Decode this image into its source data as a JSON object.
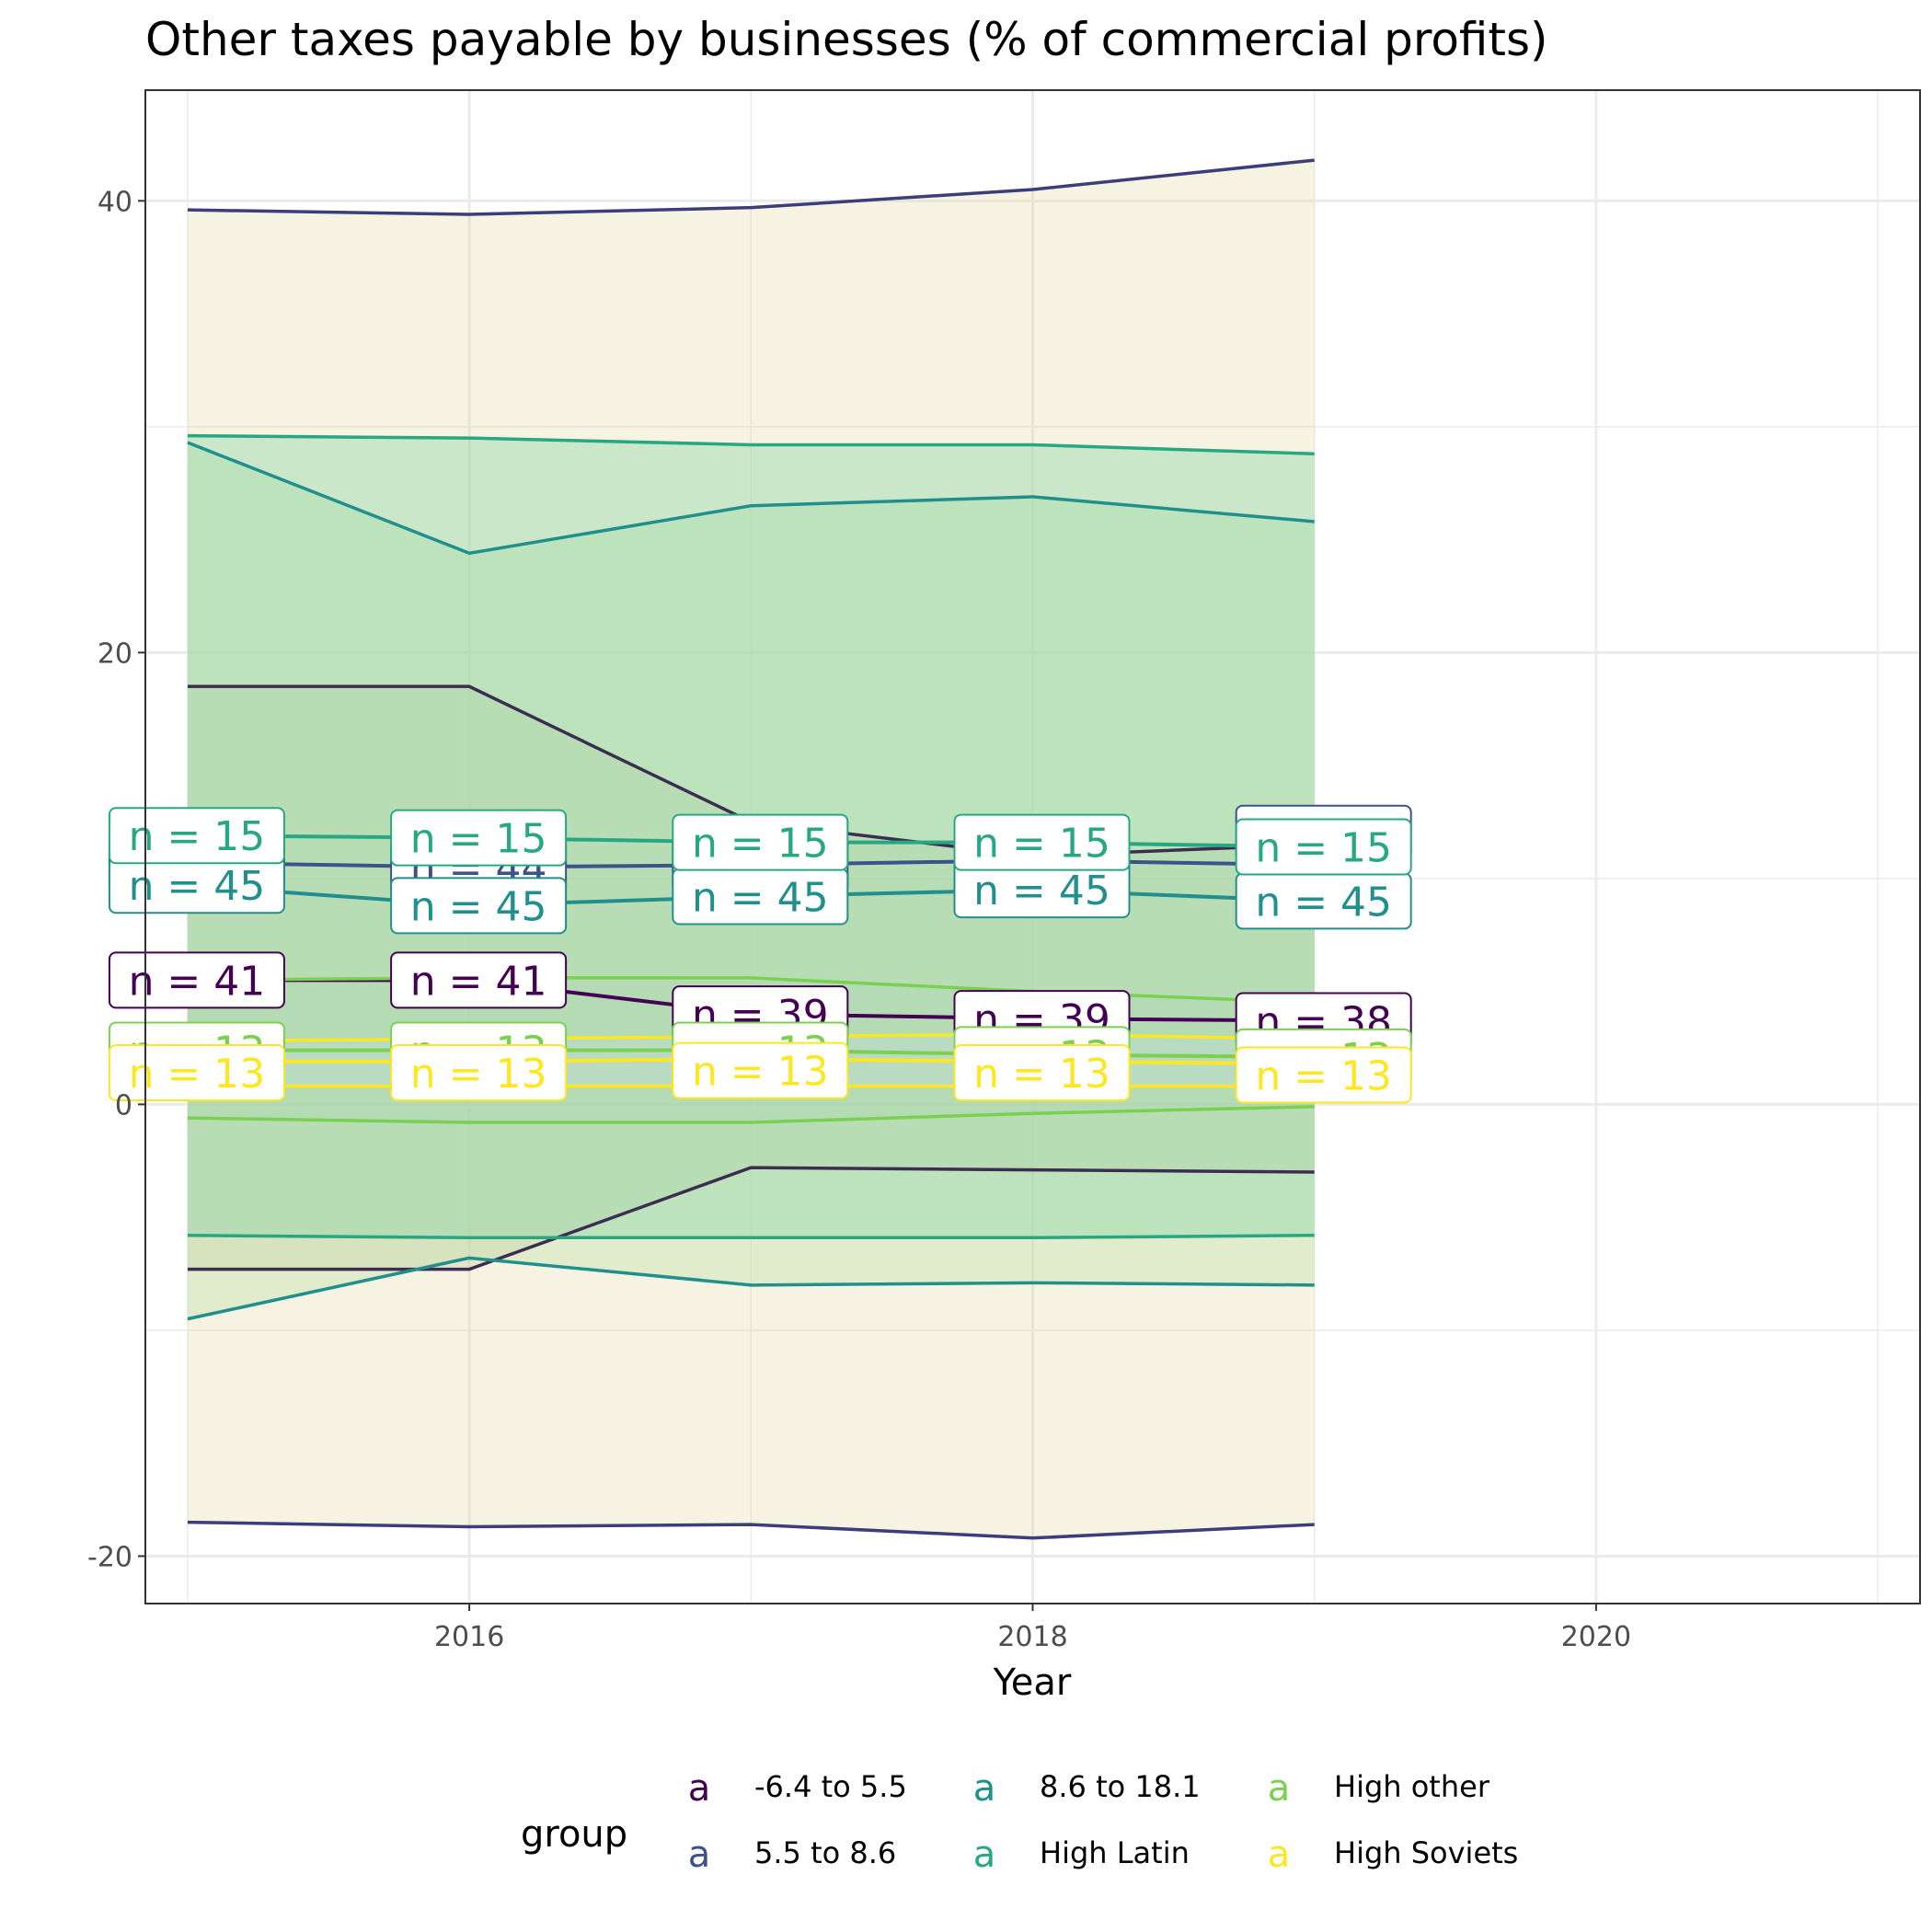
{
  "chart_data": {
    "type": "area",
    "title": "Other taxes payable by businesses (% of commercial profits)",
    "xlabel": "Year",
    "ylabel": "",
    "xlim": [
      2014.85,
      2021.15
    ],
    "ylim": [
      -22.1,
      44.9
    ],
    "x_ticks": [
      2016,
      2018,
      2020
    ],
    "x_tick_labels": [
      "2016",
      "2018",
      "2020"
    ],
    "y_ticks": [
      -20,
      0,
      20,
      40
    ],
    "y_tick_labels": [
      "-20",
      "0",
      "20",
      "40"
    ],
    "grid": true,
    "legend": {
      "title": "group",
      "position": "bottom",
      "key_glyph": "a"
    },
    "x": [
      2015,
      2016,
      2017,
      2018,
      2019
    ],
    "series": [
      {
        "name": "-6.4 to 5.5",
        "color": "#440154",
        "mean": [
          5.5,
          5.5,
          4.0,
          3.8,
          3.7
        ],
        "ribbon_upper": [
          18.5,
          18.5,
          12.5,
          11.0,
          11.5
        ],
        "ribbon_lower": [
          -7.3,
          -7.3,
          -2.8,
          -2.9,
          -3.0
        ],
        "n_labels": [
          "n = 41",
          "n = 41",
          "n = 39",
          "n = 39",
          "n = 38"
        ],
        "n_label_y": [
          5.5,
          5.5,
          4.0,
          3.8,
          3.7
        ]
      },
      {
        "name": "5.5 to 8.6",
        "color": "#3b528b",
        "mean": [
          10.7,
          10.5,
          10.6,
          10.8,
          10.6
        ],
        "ribbon_upper": [
          39.6,
          39.4,
          39.7,
          40.5,
          41.8
        ],
        "ribbon_lower": [
          -18.5,
          -18.7,
          -18.6,
          -19.2,
          -18.6
        ],
        "n_labels": [
          "n = 45",
          "n = 44",
          "n = 45",
          "n = 45",
          "n = 45"
        ],
        "n_label_y": [
          10.7,
          10.5,
          10.6,
          10.8,
          12.0
        ]
      },
      {
        "name": "8.6 to 18.1",
        "color": "#21908d",
        "mean": [
          9.7,
          8.8,
          9.2,
          9.5,
          9.0
        ],
        "ribbon_upper": [
          29.3,
          24.4,
          26.5,
          26.9,
          25.8
        ],
        "ribbon_lower": [
          -9.5,
          -6.8,
          -8.0,
          -7.9,
          -8.0
        ],
        "n_labels": [
          "n = 45",
          "n = 45",
          "n = 45",
          "n = 45",
          "n = 45"
        ],
        "n_label_y": [
          9.7,
          8.8,
          9.2,
          9.5,
          9.0
        ]
      },
      {
        "name": "High Latin",
        "color": "#27a883",
        "mean": [
          11.9,
          11.8,
          11.6,
          11.6,
          11.4
        ],
        "ribbon_upper": [
          29.6,
          29.5,
          29.2,
          29.2,
          28.8
        ],
        "ribbon_lower": [
          -5.8,
          -5.9,
          -5.9,
          -5.9,
          -5.8
        ],
        "n_labels": [
          "n = 15",
          "n = 15",
          "n = 15",
          "n = 15",
          "n = 15"
        ],
        "n_label_y": [
          11.9,
          11.8,
          11.6,
          11.6,
          11.4
        ]
      },
      {
        "name": "High other",
        "color": "#7ad151",
        "mean": [
          2.4,
          2.4,
          2.4,
          2.2,
          2.1
        ],
        "ribbon_upper": [
          5.5,
          5.6,
          5.6,
          5.0,
          4.5
        ],
        "ribbon_lower": [
          -0.6,
          -0.8,
          -0.8,
          -0.4,
          -0.1
        ],
        "n_labels": [
          "n = 13",
          "n = 13",
          "n = 13",
          "n = 13",
          "n = 13"
        ],
        "n_label_y": [
          2.4,
          2.4,
          2.4,
          2.2,
          2.1
        ]
      },
      {
        "name": "High Soviets",
        "color": "#fde725",
        "mean": [
          1.9,
          1.9,
          2.0,
          1.9,
          1.8
        ],
        "ribbon_upper": [
          2.8,
          2.9,
          3.0,
          3.1,
          2.9
        ],
        "ribbon_lower": [
          0.8,
          0.8,
          0.8,
          0.8,
          0.8
        ],
        "n_labels": [
          "n = 13",
          "n = 13",
          "n = 13",
          "n = 13",
          "n = 13"
        ],
        "n_label_y": [
          1.4,
          1.4,
          1.5,
          1.4,
          1.3
        ]
      }
    ]
  }
}
